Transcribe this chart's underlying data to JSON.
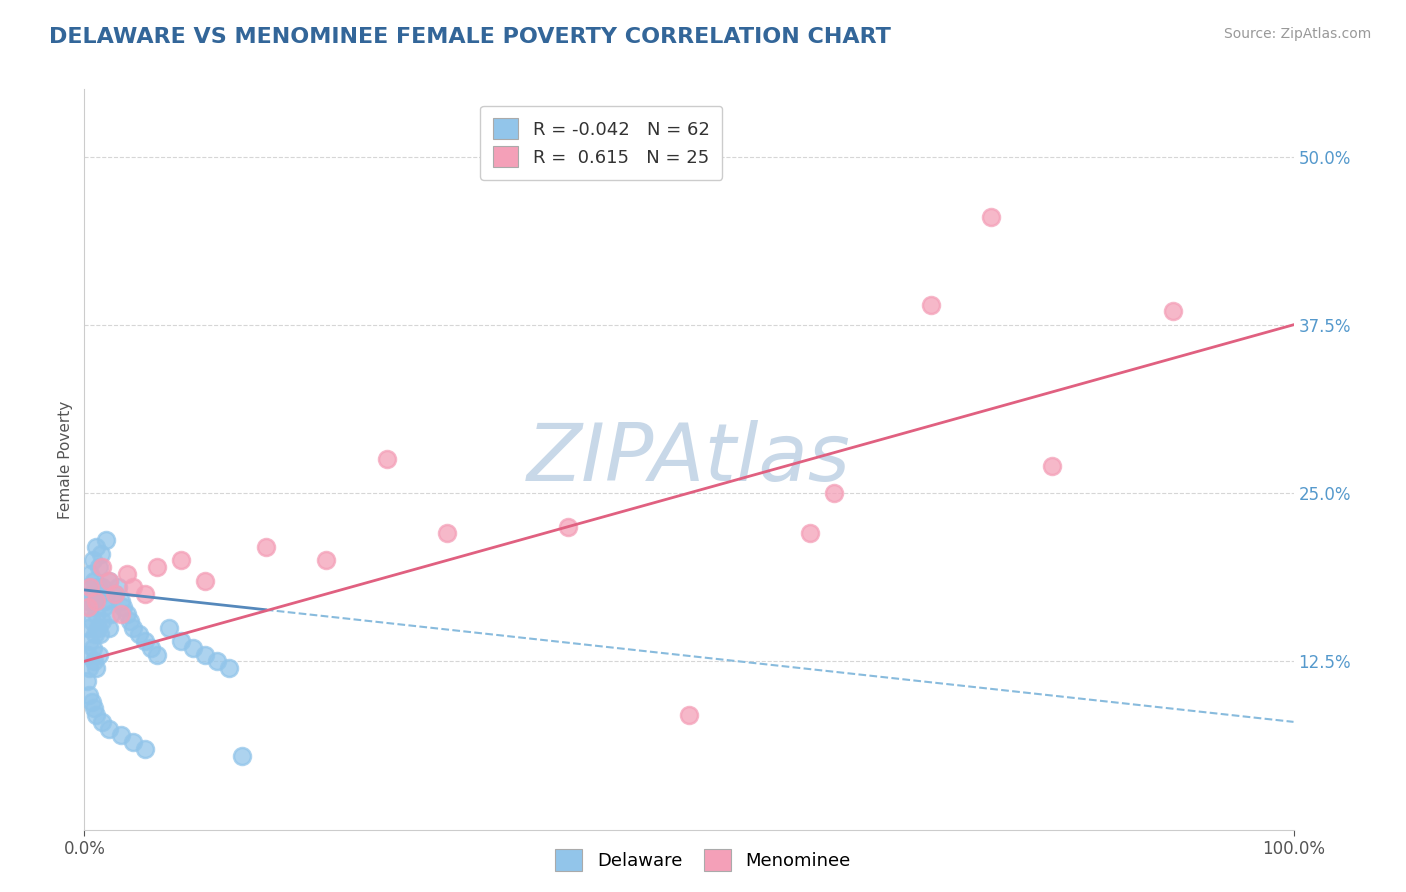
{
  "title": "DELAWARE VS MENOMINEE FEMALE POVERTY CORRELATION CHART",
  "source_text": "Source: ZipAtlas.com",
  "ylabel": "Female Poverty",
  "xlim": [
    0,
    100
  ],
  "ylim": [
    0,
    55
  ],
  "xticklabels": [
    "0.0%",
    "100.0%"
  ],
  "ytick_right": [
    12.5,
    25.0,
    37.5,
    50.0
  ],
  "ytick_right_labels": [
    "12.5%",
    "25.0%",
    "37.5%",
    "50.0%"
  ],
  "legend_R_delaware": "-0.042",
  "legend_N_delaware": "62",
  "legend_R_menominee": "0.615",
  "legend_N_menominee": "25",
  "delaware_color": "#92C5EA",
  "menominee_color": "#F4A0B8",
  "delaware_line_solid_color": "#5588BB",
  "delaware_line_dash_color": "#88BBDD",
  "menominee_line_color": "#E06080",
  "background_color": "#FFFFFF",
  "plot_bg_color": "#FFFFFF",
  "grid_color": "#CCCCCC",
  "watermark": "ZIPAtlas",
  "watermark_color": "#C8D8E8",
  "title_color": "#336699",
  "title_fontsize": 16,
  "delaware_x": [
    0.3,
    0.3,
    0.3,
    0.4,
    0.4,
    0.5,
    0.5,
    0.5,
    0.6,
    0.6,
    0.7,
    0.7,
    0.8,
    0.8,
    0.9,
    0.9,
    1.0,
    1.0,
    1.0,
    1.1,
    1.1,
    1.2,
    1.2,
    1.3,
    1.3,
    1.4,
    1.5,
    1.5,
    1.6,
    1.7,
    1.8,
    2.0,
    2.0,
    2.2,
    2.5,
    2.8,
    3.0,
    3.2,
    3.5,
    3.8,
    4.0,
    4.5,
    5.0,
    5.5,
    6.0,
    7.0,
    8.0,
    9.0,
    10.0,
    11.0,
    12.0,
    0.2,
    0.4,
    0.6,
    0.8,
    1.0,
    1.5,
    2.0,
    3.0,
    4.0,
    5.0,
    13.0
  ],
  "delaware_y": [
    17.0,
    15.0,
    13.0,
    18.0,
    12.0,
    19.0,
    16.5,
    14.0,
    17.5,
    15.5,
    20.0,
    13.5,
    18.5,
    12.5,
    17.0,
    14.5,
    21.0,
    16.0,
    12.0,
    18.0,
    15.0,
    19.5,
    13.0,
    17.5,
    14.5,
    20.5,
    18.0,
    15.5,
    16.5,
    17.0,
    21.5,
    18.5,
    15.0,
    16.0,
    17.5,
    18.0,
    17.0,
    16.5,
    16.0,
    15.5,
    15.0,
    14.5,
    14.0,
    13.5,
    13.0,
    15.0,
    14.0,
    13.5,
    13.0,
    12.5,
    12.0,
    11.0,
    10.0,
    9.5,
    9.0,
    8.5,
    8.0,
    7.5,
    7.0,
    6.5,
    6.0,
    5.5
  ],
  "menominee_x": [
    0.3,
    0.5,
    1.0,
    1.5,
    2.0,
    2.5,
    3.0,
    3.5,
    4.0,
    5.0,
    6.0,
    8.0,
    10.0,
    15.0,
    20.0,
    25.0,
    30.0,
    40.0,
    50.0,
    60.0,
    62.0,
    70.0,
    75.0,
    80.0,
    90.0
  ],
  "menominee_y": [
    16.5,
    18.0,
    17.0,
    19.5,
    18.5,
    17.5,
    16.0,
    19.0,
    18.0,
    17.5,
    19.5,
    20.0,
    18.5,
    21.0,
    20.0,
    27.5,
    22.0,
    22.5,
    8.5,
    22.0,
    25.0,
    39.0,
    45.5,
    27.0,
    38.5
  ],
  "delaware_trend_x0": 0,
  "delaware_trend_y0": 17.8,
  "delaware_trend_x1": 100,
  "delaware_trend_y1": 8.0,
  "menominee_trend_x0": 0,
  "menominee_trend_y0": 12.5,
  "menominee_trend_x1": 100,
  "menominee_trend_y1": 37.5
}
